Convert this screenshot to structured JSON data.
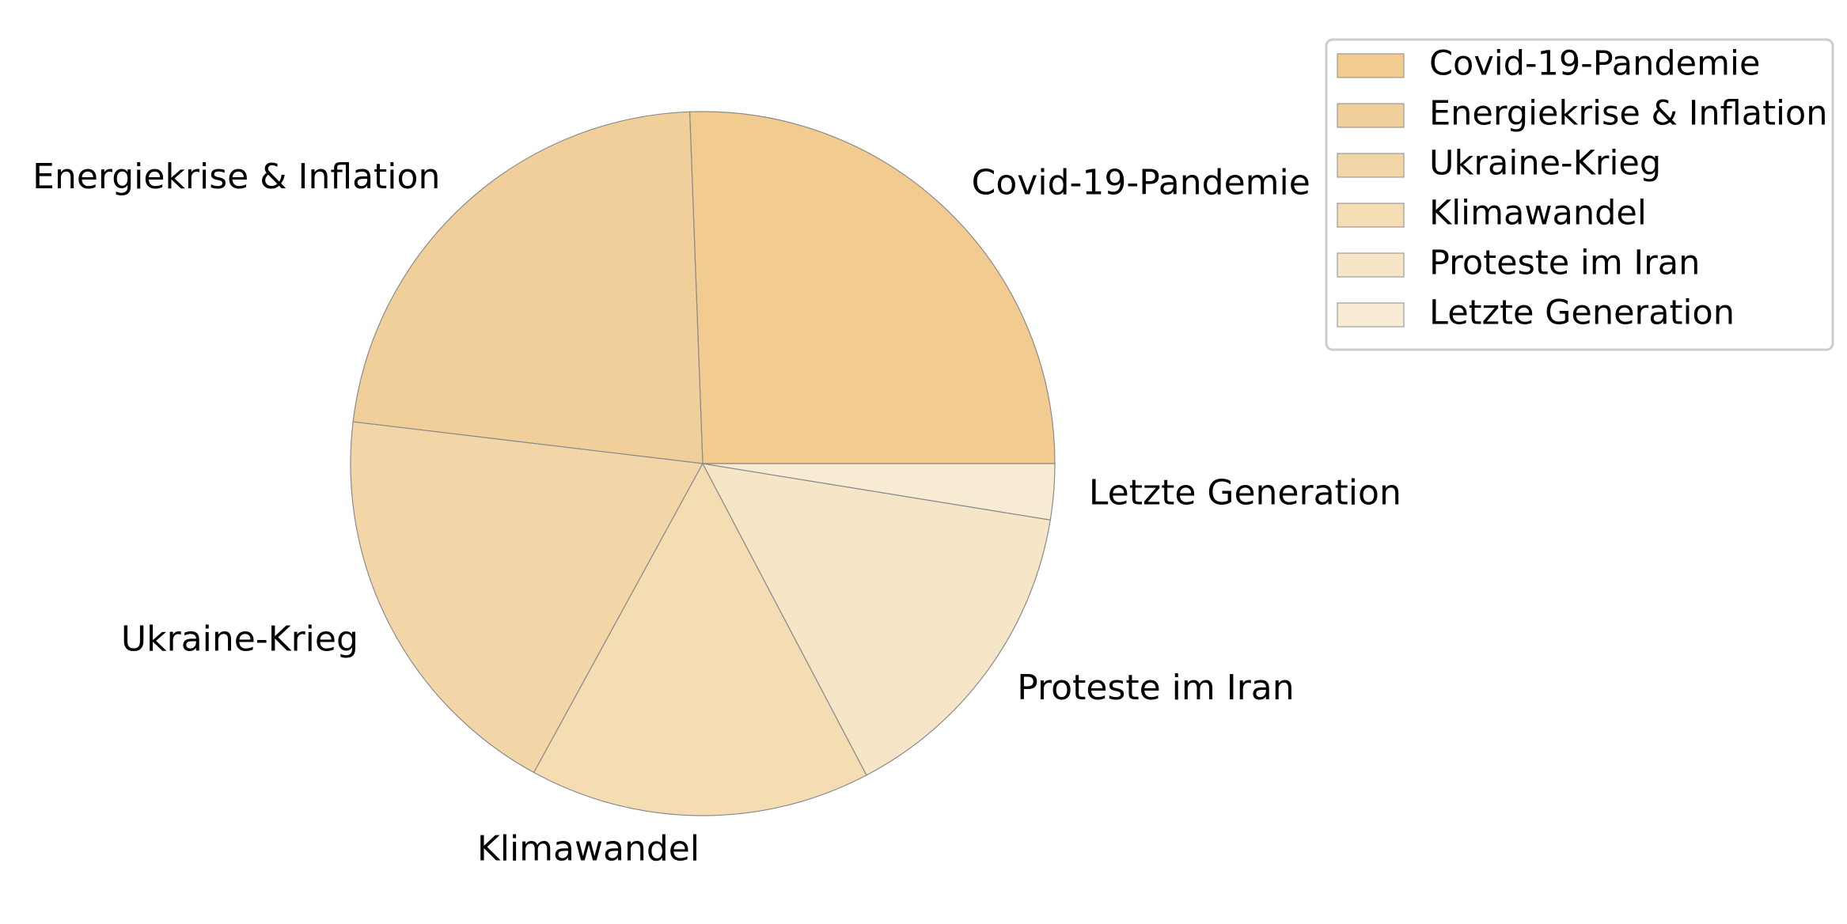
{
  "chart_data": {
    "type": "pie",
    "title": "",
    "categories": [
      "Covid-19-Pandemie",
      "Energiekrise & Inflation",
      "Ukraine-Krieg",
      "Klimawandel",
      "Proteste im Iran",
      "Letzte Generation"
    ],
    "values": [
      25.0,
      22.0,
      18.5,
      15.3,
      14.4,
      2.5
    ],
    "unit": "percent",
    "start_angle_deg": 0,
    "direction": "counterclockwise",
    "colors": [
      "#f1cb8f",
      "#f1cf9b",
      "#f3d6a8",
      "#f4dcb3",
      "#f6e5c6",
      "#f8ebd3"
    ],
    "edge_color": "#8a8a8a",
    "legend": {
      "placement": "top-right",
      "entries": [
        "Covid-19-Pandemie",
        "Energiekrise & Inflation",
        "Ukraine-Krieg",
        "Klimawandel",
        "Proteste im Iran",
        "Letzte Generation"
      ]
    }
  }
}
